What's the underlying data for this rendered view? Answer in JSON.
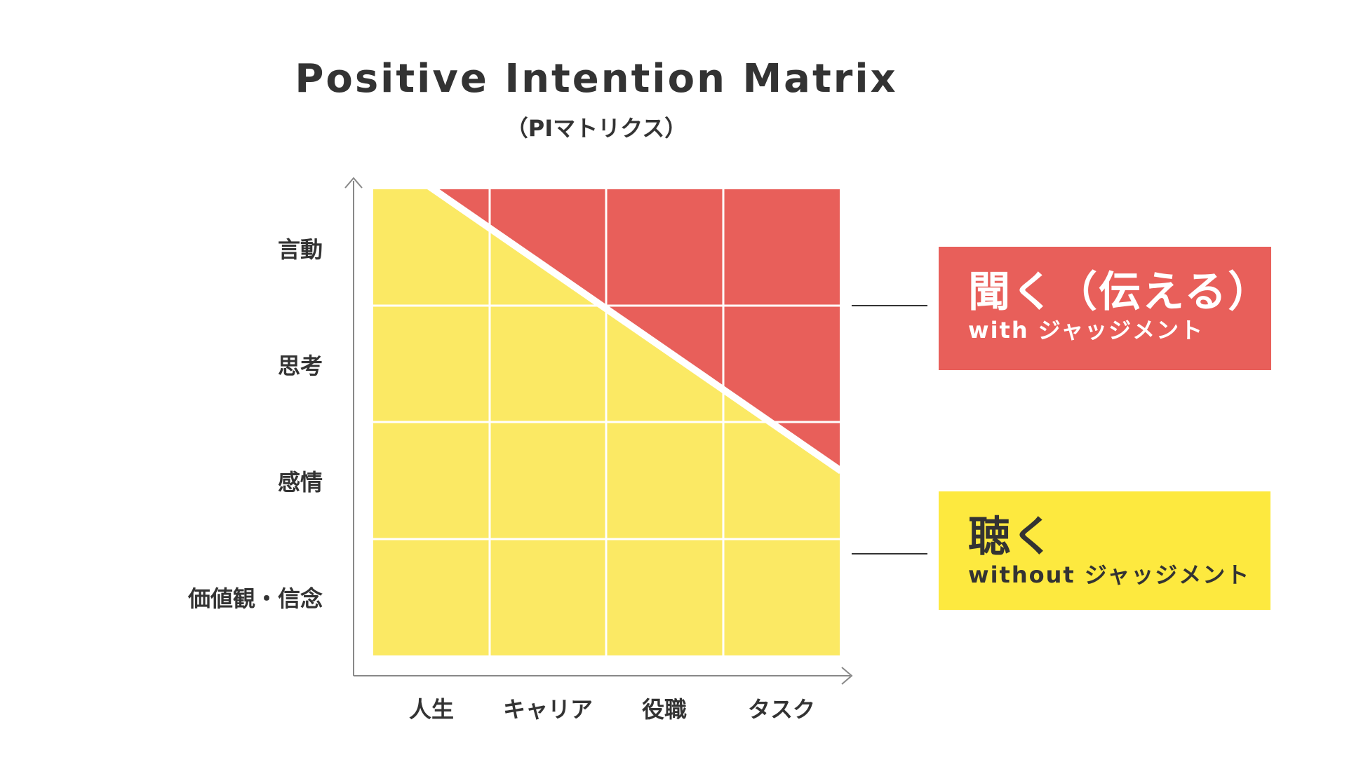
{
  "title": "Positive Intention Matrix",
  "subtitle": "（PIマトリクス）",
  "y_axis_labels": [
    "言動",
    "思考",
    "感情",
    "価値観・信念"
  ],
  "x_axis_labels": [
    "人生",
    "キャリア",
    "役職",
    "タスク"
  ],
  "legend": {
    "red": {
      "main": "聞く（伝える）",
      "sub": "with ジャッジメント"
    },
    "yellow": {
      "main": "聴く",
      "sub": "without ジャッジメント"
    }
  },
  "colors": {
    "red": "#e85f5a",
    "yellow": "#fbe964",
    "yellow_box": "#fde93f",
    "text": "#333333",
    "axis": "#888888"
  }
}
